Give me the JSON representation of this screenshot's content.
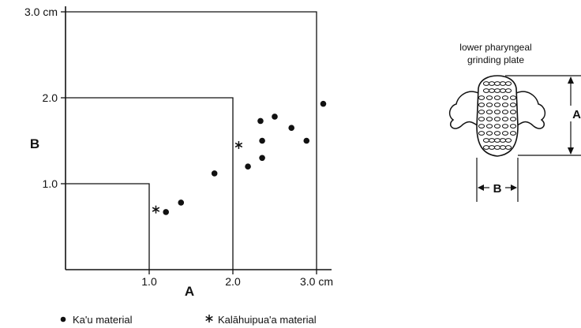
{
  "chart_data": {
    "type": "scatter",
    "xlabel": "A",
    "ylabel": "B",
    "xlim": [
      0,
      3.0
    ],
    "ylim": [
      0,
      3.0
    ],
    "x_ticks": [
      {
        "value": 1.0,
        "label": "1.0"
      },
      {
        "value": 2.0,
        "label": "2.0"
      },
      {
        "value": 3.0,
        "label": "3.0 cm"
      }
    ],
    "y_ticks": [
      {
        "value": 1.0,
        "label": "1.0"
      },
      {
        "value": 2.0,
        "label": "2.0"
      },
      {
        "value": 3.0,
        "label": "3.0 cm"
      }
    ],
    "reference_boxes": [
      1.0,
      2.0,
      3.0
    ],
    "series": [
      {
        "name": "Ka'u material",
        "marker": "dot",
        "points": [
          {
            "x": 1.2,
            "y": 0.67
          },
          {
            "x": 1.38,
            "y": 0.78
          },
          {
            "x": 1.78,
            "y": 1.12
          },
          {
            "x": 2.18,
            "y": 1.2
          },
          {
            "x": 2.35,
            "y": 1.3
          },
          {
            "x": 2.35,
            "y": 1.5
          },
          {
            "x": 2.33,
            "y": 1.73
          },
          {
            "x": 2.5,
            "y": 1.78
          },
          {
            "x": 2.7,
            "y": 1.65
          },
          {
            "x": 2.88,
            "y": 1.5
          },
          {
            "x": 3.08,
            "y": 1.93
          }
        ]
      },
      {
        "name": "Kalāhuipua'a material",
        "marker": "asterisk",
        "points": [
          {
            "x": 1.08,
            "y": 0.7
          },
          {
            "x": 2.07,
            "y": 1.45
          }
        ]
      }
    ]
  },
  "diagram": {
    "caption_line1": "lower pharyngeal",
    "caption_line2": "grinding plate",
    "dim_a_label": "A",
    "dim_b_label": "B"
  }
}
